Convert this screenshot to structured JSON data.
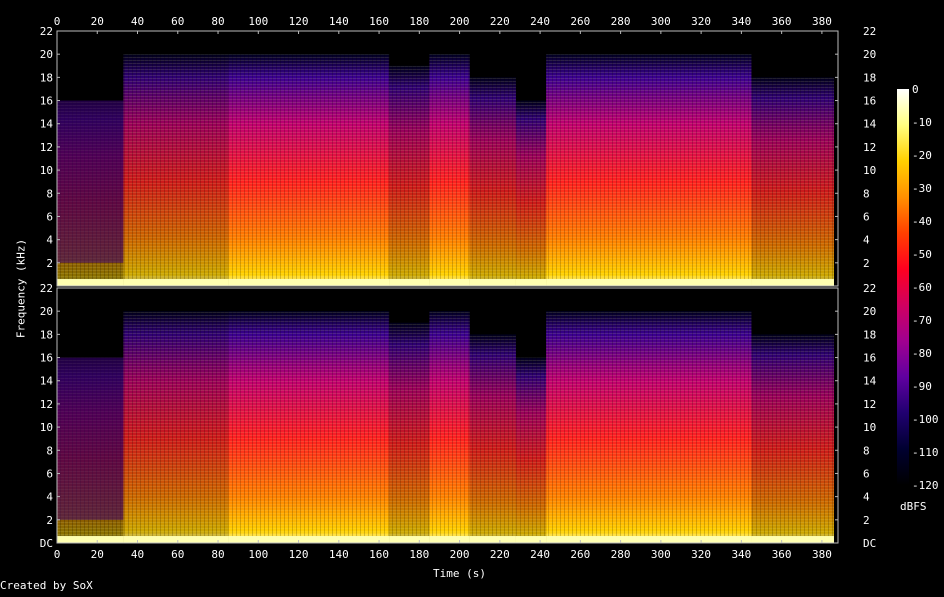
{
  "chart_data": {
    "type": "heatmap",
    "xlabel": "Time (s)",
    "ylabel": "Frequency (kHz)",
    "xlim": [
      0,
      388
    ],
    "x_ticks": [
      "0",
      "20",
      "40",
      "60",
      "80",
      "100",
      "120",
      "140",
      "160",
      "180",
      "200",
      "220",
      "240",
      "260",
      "280",
      "300",
      "320",
      "340",
      "360",
      "380"
    ],
    "channels": [
      {
        "y_ticks": [
          "22",
          "20",
          "18",
          "16",
          "14",
          "12",
          "10",
          "8",
          "6",
          "4",
          "2"
        ],
        "ylim": [
          0,
          22
        ]
      },
      {
        "y_ticks": [
          "22",
          "20",
          "18",
          "16",
          "14",
          "12",
          "10",
          "8",
          "6",
          "4",
          "2",
          "DC"
        ],
        "ylim": [
          0,
          22
        ]
      }
    ],
    "colorbar": {
      "unit_label": "dBFS",
      "ticks": [
        "0",
        "-10",
        "-20",
        "-30",
        "-40",
        "-50",
        "-60",
        "-70",
        "-80",
        "-90",
        "-100",
        "-110",
        "-120"
      ],
      "range": [
        -120,
        0
      ],
      "stops": [
        "#ffffff",
        "#ffff80",
        "#ffd000",
        "#ff9000",
        "#ff4000",
        "#ff0020",
        "#d00060",
        "#a00090",
        "#6000a0",
        "#200070",
        "#000030",
        "#000000"
      ]
    },
    "segments_s": [
      {
        "start": 0,
        "end": 33,
        "cutoff_khz": 16,
        "level": "low"
      },
      {
        "start": 33,
        "end": 85,
        "cutoff_khz": 20,
        "level": "medium"
      },
      {
        "start": 85,
        "end": 118,
        "cutoff_khz": 20,
        "level": "high"
      },
      {
        "start": 118,
        "end": 165,
        "cutoff_khz": 20,
        "level": "high"
      },
      {
        "start": 165,
        "end": 185,
        "cutoff_khz": 19,
        "level": "medium"
      },
      {
        "start": 185,
        "end": 205,
        "cutoff_khz": 20,
        "level": "high"
      },
      {
        "start": 205,
        "end": 228,
        "cutoff_khz": 18,
        "level": "medium"
      },
      {
        "start": 228,
        "end": 243,
        "cutoff_khz": 16,
        "level": "medium"
      },
      {
        "start": 243,
        "end": 345,
        "cutoff_khz": 20,
        "level": "high"
      },
      {
        "start": 345,
        "end": 386,
        "cutoff_khz": 18,
        "level": "medium"
      }
    ]
  },
  "footer": {
    "credit": "Created by SoX"
  }
}
